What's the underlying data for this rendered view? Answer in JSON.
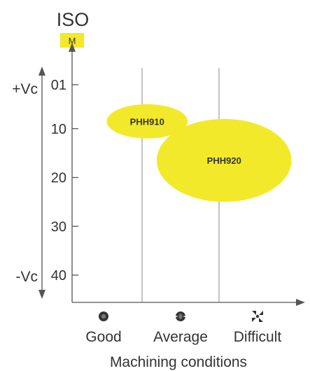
{
  "chart_data": {
    "type": "bubble",
    "header": {
      "title": "ISO",
      "badge": "M"
    },
    "y_axis": {
      "top_label": "+Vc",
      "bottom_label": "-Vc",
      "ticks": [
        "01",
        "10",
        "20",
        "30",
        "40"
      ]
    },
    "x_axis": {
      "categories": [
        "Good",
        "Average",
        "Difficult"
      ],
      "icons": [
        "good-condition-icon",
        "average-condition-icon",
        "difficult-condition-icon"
      ],
      "label": "Machining conditions"
    },
    "bubbles": [
      {
        "name": "PHH910",
        "x_from": 0.45,
        "x_to": 1.5,
        "y_from": 5,
        "y_to": 12
      },
      {
        "name": "PHH920",
        "x_from": 1.1,
        "x_to": 2.85,
        "y_from": 8,
        "y_to": 25
      }
    ],
    "colors": {
      "accent": "#f2e92a",
      "text": "#333333",
      "grid": "#888888"
    }
  }
}
